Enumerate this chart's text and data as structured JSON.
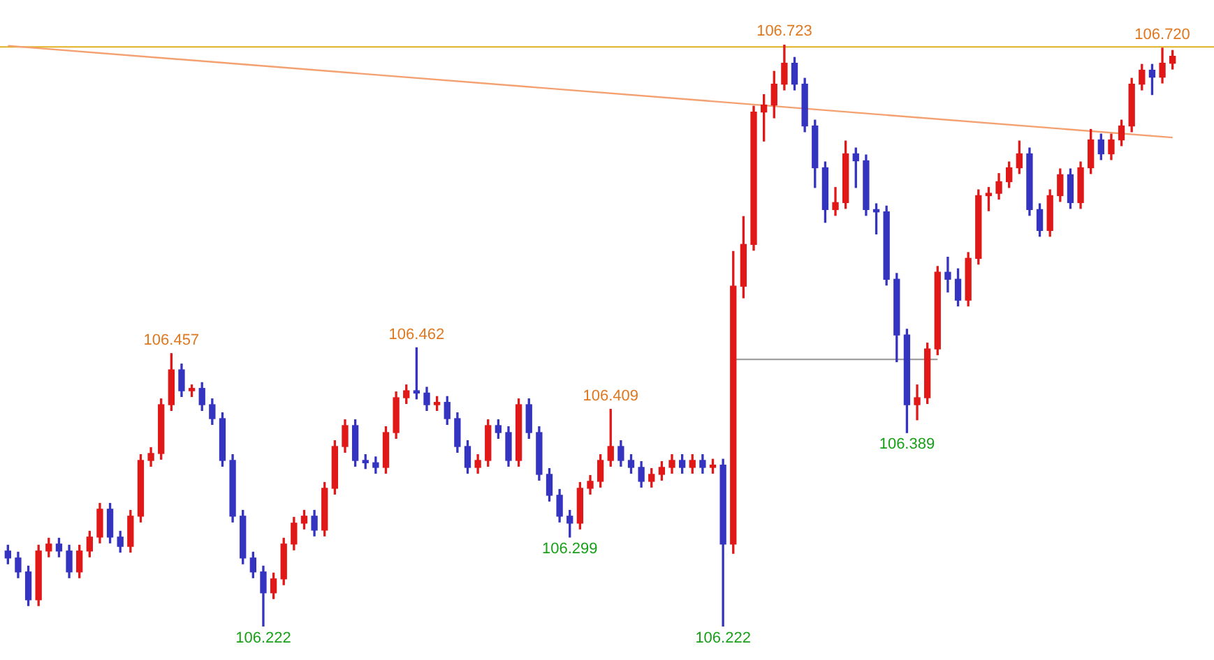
{
  "chart_data": {
    "type": "candlestick",
    "colors": [
      "#3434c0",
      "#3434c0",
      "#3434c0",
      "#e01818",
      "#e01818",
      "#3434c0",
      "#3434c0",
      "#e01818",
      "#e01818",
      "#e01818",
      "#3434c0",
      "#3434c0",
      "#e01818",
      "#e01818",
      "#e01818",
      "#e01818",
      "#e01818",
      "#3434c0",
      "#e01818",
      "#3434c0",
      "#3434c0",
      "#3434c0",
      "#3434c0",
      "#3434c0",
      "#3434c0",
      "#3434c0",
      "#e01818",
      "#e01818",
      "#e01818",
      "#e01818",
      "#3434c0",
      "#e01818",
      "#e01818",
      "#e01818",
      "#3434c0",
      "#3434c0",
      "#3434c0",
      "#e01818",
      "#e01818",
      "#e01818",
      "#3434c0",
      "#3434c0",
      "#e01818",
      "#3434c0",
      "#3434c0",
      "#3434c0",
      "#e01818",
      "#e01818",
      "#3434c0",
      "#3434c0",
      "#e01818",
      "#3434c0",
      "#3434c0",
      "#3434c0",
      "#3434c0",
      "#3434c0",
      "#e01818",
      "#e01818",
      "#e01818",
      "#e01818",
      "#3434c0",
      "#3434c0",
      "#3434c0",
      "#e01818",
      "#e01818",
      "#e01818",
      "#3434c0",
      "#e01818",
      "#3434c0",
      "#e01818",
      "#3434c0",
      "#e01818",
      "#e01818",
      "#e01818",
      "#e01818",
      "#e01818",
      "#e01818",
      "#3434c0",
      "#3434c0",
      "#3434c0",
      "#3434c0",
      "#e01818",
      "#e01818",
      "#3434c0",
      "#3434c0",
      "#3434c0",
      "#3434c0",
      "#3434c0",
      "#3434c0",
      "#e01818",
      "#e01818",
      "#e01818",
      "#3434c0",
      "#3434c0",
      "#e01818",
      "#e01818",
      "#e01818",
      "#e01818",
      "#e01818",
      "#e01818",
      "#3434c0",
      "#3434c0",
      "#e01818",
      "#e01818",
      "#3434c0",
      "#e01818",
      "#e01818",
      "#3434c0",
      "#e01818",
      "#e01818",
      "#e01818",
      "#e01818",
      "#3434c0",
      "#e01818",
      "#e01818"
    ],
    "categories": [
      null,
      null,
      null,
      null,
      null,
      null,
      null,
      null,
      null,
      null,
      null,
      null,
      null,
      null,
      null,
      null,
      null,
      null,
      null,
      null,
      null,
      null,
      null,
      null,
      null,
      null,
      null,
      null,
      null,
      null,
      null,
      null,
      null,
      null,
      null,
      null,
      null,
      null,
      null,
      null,
      null,
      null,
      null,
      null,
      null,
      null,
      null,
      null,
      null,
      null,
      null,
      null,
      null,
      null,
      null,
      null,
      null,
      null,
      null,
      null,
      null,
      null,
      null,
      null,
      null,
      null,
      null,
      null,
      null,
      null,
      null,
      null,
      null,
      null,
      null,
      null,
      null,
      null,
      null,
      null,
      null,
      null,
      null,
      null,
      null,
      null,
      null,
      null,
      null,
      null,
      null,
      null,
      null,
      null,
      null,
      null,
      null,
      null,
      null,
      null,
      null,
      null,
      null,
      null,
      null,
      null,
      null,
      null,
      null,
      null,
      null,
      null,
      null,
      null,
      null
    ],
    "ohlc": [
      [
        106.287,
        106.292,
        106.276,
        106.281
      ],
      [
        106.281,
        106.286,
        106.264,
        106.269
      ],
      [
        106.269,
        106.274,
        106.24,
        106.245
      ],
      [
        106.245,
        106.292,
        106.24,
        106.287
      ],
      [
        106.287,
        106.298,
        106.282,
        106.293
      ],
      [
        106.293,
        106.298,
        106.282,
        106.287
      ],
      [
        106.287,
        106.292,
        106.264,
        106.269
      ],
      [
        106.269,
        106.292,
        106.264,
        106.287
      ],
      [
        106.287,
        106.304,
        106.282,
        106.299
      ],
      [
        106.299,
        106.328,
        106.294,
        106.323
      ],
      [
        106.323,
        106.328,
        106.294,
        106.299
      ],
      [
        106.299,
        106.304,
        106.286,
        106.291
      ],
      [
        106.291,
        106.322,
        106.286,
        106.317
      ],
      [
        106.317,
        106.37,
        106.312,
        106.365
      ],
      [
        106.365,
        106.376,
        106.36,
        106.371
      ],
      [
        106.371,
        106.418,
        106.366,
        106.413
      ],
      [
        106.413,
        106.457,
        106.408,
        106.443
      ],
      [
        106.443,
        106.448,
        106.42,
        106.425
      ],
      [
        106.425,
        106.43,
        106.42,
        106.427
      ],
      [
        106.427,
        106.432,
        106.408,
        106.413
      ],
      [
        106.413,
        106.418,
        106.396,
        106.401
      ],
      [
        106.401,
        106.406,
        106.36,
        106.365
      ],
      [
        106.365,
        106.37,
        106.312,
        106.317
      ],
      [
        106.317,
        106.322,
        106.276,
        106.281
      ],
      [
        106.281,
        106.286,
        106.264,
        106.269
      ],
      [
        106.269,
        106.274,
        106.222,
        106.251
      ],
      [
        106.251,
        106.268,
        106.246,
        106.263
      ],
      [
        106.263,
        106.298,
        106.258,
        106.293
      ],
      [
        106.293,
        106.316,
        106.288,
        106.311
      ],
      [
        106.311,
        106.322,
        106.306,
        106.317
      ],
      [
        106.317,
        106.322,
        106.3,
        106.305
      ],
      [
        106.305,
        106.346,
        106.3,
        106.341
      ],
      [
        106.341,
        106.382,
        106.336,
        106.377
      ],
      [
        106.377,
        106.4,
        106.372,
        106.395
      ],
      [
        106.395,
        106.4,
        106.36,
        106.365
      ],
      [
        106.365,
        106.37,
        106.358,
        106.363
      ],
      [
        106.363,
        106.368,
        106.354,
        106.359
      ],
      [
        106.359,
        106.394,
        106.354,
        106.389
      ],
      [
        106.389,
        106.424,
        106.384,
        106.419
      ],
      [
        106.419,
        106.43,
        106.414,
        106.425
      ],
      [
        106.425,
        106.462,
        106.418,
        106.423
      ],
      [
        106.423,
        106.428,
        106.408,
        106.413
      ],
      [
        106.413,
        106.42,
        106.408,
        106.415
      ],
      [
        106.415,
        106.42,
        106.396,
        106.401
      ],
      [
        106.401,
        106.406,
        106.372,
        106.377
      ],
      [
        106.377,
        106.382,
        106.354,
        106.359
      ],
      [
        106.359,
        106.37,
        106.354,
        106.365
      ],
      [
        106.365,
        106.4,
        106.36,
        106.395
      ],
      [
        106.395,
        106.4,
        106.384,
        106.389
      ],
      [
        106.389,
        106.394,
        106.36,
        106.365
      ],
      [
        106.365,
        106.418,
        106.36,
        106.413
      ],
      [
        106.413,
        106.418,
        106.384,
        106.389
      ],
      [
        106.389,
        106.394,
        106.348,
        106.353
      ],
      [
        106.353,
        106.358,
        106.33,
        106.335
      ],
      [
        106.335,
        106.34,
        106.312,
        106.317
      ],
      [
        106.317,
        106.322,
        106.299,
        106.311
      ],
      [
        106.311,
        106.346,
        106.306,
        106.341
      ],
      [
        106.341,
        106.352,
        106.336,
        106.347
      ],
      [
        106.347,
        106.37,
        106.342,
        106.365
      ],
      [
        106.365,
        106.409,
        106.36,
        106.377
      ],
      [
        106.377,
        106.382,
        106.36,
        106.365
      ],
      [
        106.365,
        106.37,
        106.354,
        106.359
      ],
      [
        106.359,
        106.364,
        106.342,
        106.347
      ],
      [
        106.347,
        106.358,
        106.342,
        106.353
      ],
      [
        106.353,
        106.364,
        106.348,
        106.359
      ],
      [
        106.359,
        106.37,
        106.354,
        106.365
      ],
      [
        106.365,
        106.37,
        106.354,
        106.359
      ],
      [
        106.359,
        106.37,
        106.354,
        106.365
      ],
      [
        106.365,
        106.37,
        106.354,
        106.359
      ],
      [
        106.359,
        106.366,
        106.354,
        106.361
      ],
      [
        106.361,
        106.366,
        106.222,
        106.293
      ],
      [
        106.293,
        106.545,
        106.285,
        106.515
      ],
      [
        106.515,
        106.575,
        106.505,
        106.551
      ],
      [
        106.551,
        106.67,
        106.546,
        106.665
      ],
      [
        106.665,
        106.68,
        106.64,
        106.671
      ],
      [
        106.671,
        106.7,
        106.66,
        106.689
      ],
      [
        106.689,
        106.723,
        106.684,
        106.707
      ],
      [
        106.707,
        106.712,
        106.684,
        106.689
      ],
      [
        106.689,
        106.694,
        106.648,
        106.653
      ],
      [
        106.653,
        106.658,
        106.6,
        106.617
      ],
      [
        106.617,
        106.622,
        106.57,
        106.581
      ],
      [
        106.581,
        106.6,
        106.576,
        106.587
      ],
      [
        106.587,
        106.64,
        106.582,
        106.629
      ],
      [
        106.629,
        106.634,
        106.6,
        106.623
      ],
      [
        106.623,
        106.628,
        106.576,
        106.581
      ],
      [
        106.581,
        106.586,
        106.56,
        106.579
      ],
      [
        106.579,
        106.584,
        106.516,
        106.521
      ],
      [
        106.521,
        106.526,
        106.45,
        106.473
      ],
      [
        106.473,
        106.478,
        106.389,
        106.413
      ],
      [
        106.413,
        106.43,
        106.4,
        106.419
      ],
      [
        106.419,
        106.466,
        106.414,
        106.461
      ],
      [
        106.461,
        106.532,
        106.456,
        106.527
      ],
      [
        106.527,
        106.54,
        106.51,
        106.521
      ],
      [
        106.521,
        106.53,
        106.498,
        106.503
      ],
      [
        106.503,
        106.544,
        106.498,
        106.539
      ],
      [
        106.539,
        106.598,
        106.534,
        106.593
      ],
      [
        106.593,
        106.6,
        106.58,
        106.595
      ],
      [
        106.595,
        106.612,
        106.59,
        106.605
      ],
      [
        106.605,
        106.622,
        106.6,
        106.617
      ],
      [
        106.617,
        106.64,
        106.612,
        106.629
      ],
      [
        106.629,
        106.634,
        106.576,
        106.581
      ],
      [
        106.581,
        106.586,
        106.558,
        106.563
      ],
      [
        106.563,
        106.598,
        106.558,
        106.593
      ],
      [
        106.593,
        106.616,
        106.588,
        106.611
      ],
      [
        106.611,
        106.616,
        106.582,
        106.587
      ],
      [
        106.587,
        106.622,
        106.582,
        106.617
      ],
      [
        106.617,
        106.65,
        106.612,
        106.641
      ],
      [
        106.641,
        106.646,
        106.624,
        106.629
      ],
      [
        106.629,
        106.646,
        106.624,
        106.641
      ],
      [
        106.641,
        106.658,
        106.636,
        106.653
      ],
      [
        106.653,
        106.694,
        106.648,
        106.689
      ],
      [
        106.689,
        106.706,
        106.684,
        106.701
      ],
      [
        106.701,
        106.706,
        106.68,
        106.695
      ],
      [
        106.695,
        106.72,
        106.69,
        106.707
      ],
      [
        106.707,
        106.718,
        106.702,
        106.713
      ]
    ],
    "series": [
      {
        "type": "line",
        "color": "#f4a070",
        "values": [
          106.722,
          null,
          null,
          null,
          null,
          null,
          null,
          null,
          null,
          null,
          null,
          null,
          null,
          null,
          null,
          null,
          null,
          null,
          null,
          null,
          null,
          null,
          null,
          null,
          null,
          null,
          null,
          null,
          null,
          null,
          null,
          null,
          null,
          null,
          null,
          null,
          null,
          null,
          null,
          null,
          null,
          null,
          null,
          null,
          null,
          null,
          null,
          null,
          null,
          null,
          null,
          null,
          null,
          null,
          null,
          null,
          null,
          null,
          null,
          null,
          null,
          null,
          null,
          null,
          null,
          null,
          null,
          null,
          null,
          null,
          null,
          null,
          null,
          null,
          null,
          null,
          null,
          null,
          null,
          null,
          null,
          null,
          null,
          null,
          null,
          null,
          null,
          null,
          null,
          null,
          null,
          null,
          null,
          null,
          null,
          null,
          null,
          null,
          null,
          null,
          null,
          null,
          null,
          null,
          null,
          null,
          null,
          null,
          null,
          null,
          null,
          null,
          null,
          null,
          106.643
        ]
      },
      {
        "type": "line",
        "color": "#a0a0a0",
        "values": [
          null,
          null,
          null,
          null,
          null,
          null,
          null,
          null,
          null,
          null,
          null,
          null,
          null,
          null,
          null,
          null,
          null,
          null,
          null,
          null,
          null,
          null,
          null,
          null,
          null,
          null,
          null,
          null,
          null,
          null,
          null,
          null,
          null,
          null,
          null,
          null,
          null,
          null,
          null,
          null,
          null,
          null,
          null,
          null,
          null,
          null,
          null,
          null,
          null,
          null,
          null,
          null,
          null,
          null,
          null,
          null,
          null,
          null,
          null,
          null,
          null,
          null,
          null,
          null,
          null,
          null,
          null,
          null,
          null,
          null,
          null,
          106.452,
          null,
          null,
          null,
          null,
          null,
          null,
          null,
          null,
          null,
          null,
          null,
          null,
          null,
          null,
          null,
          null,
          null,
          null,
          null,
          106.452,
          null,
          null,
          null,
          null,
          null,
          null,
          null,
          null,
          null,
          null,
          null,
          null,
          null,
          null,
          null,
          null,
          null,
          null,
          null,
          null,
          null,
          null,
          null
        ]
      }
    ],
    "ref_lines": [
      {
        "axis": "y",
        "value": 106.721,
        "color": "#e0b020"
      }
    ],
    "annotations": [
      {
        "text": "106.457",
        "y": 106.457
      },
      {
        "text": "106.222",
        "y": 106.222
      },
      {
        "text": "106.462",
        "y": 106.462
      },
      {
        "text": "106.299",
        "y": 106.299
      },
      {
        "text": "106.409",
        "y": 106.409
      },
      {
        "text": "106.222",
        "y": 106.222
      },
      {
        "text": "106.723",
        "y": 106.723
      },
      {
        "text": "106.389",
        "y": 106.389
      },
      {
        "text": "106.720",
        "y": 106.72
      }
    ],
    "legend": false
  }
}
